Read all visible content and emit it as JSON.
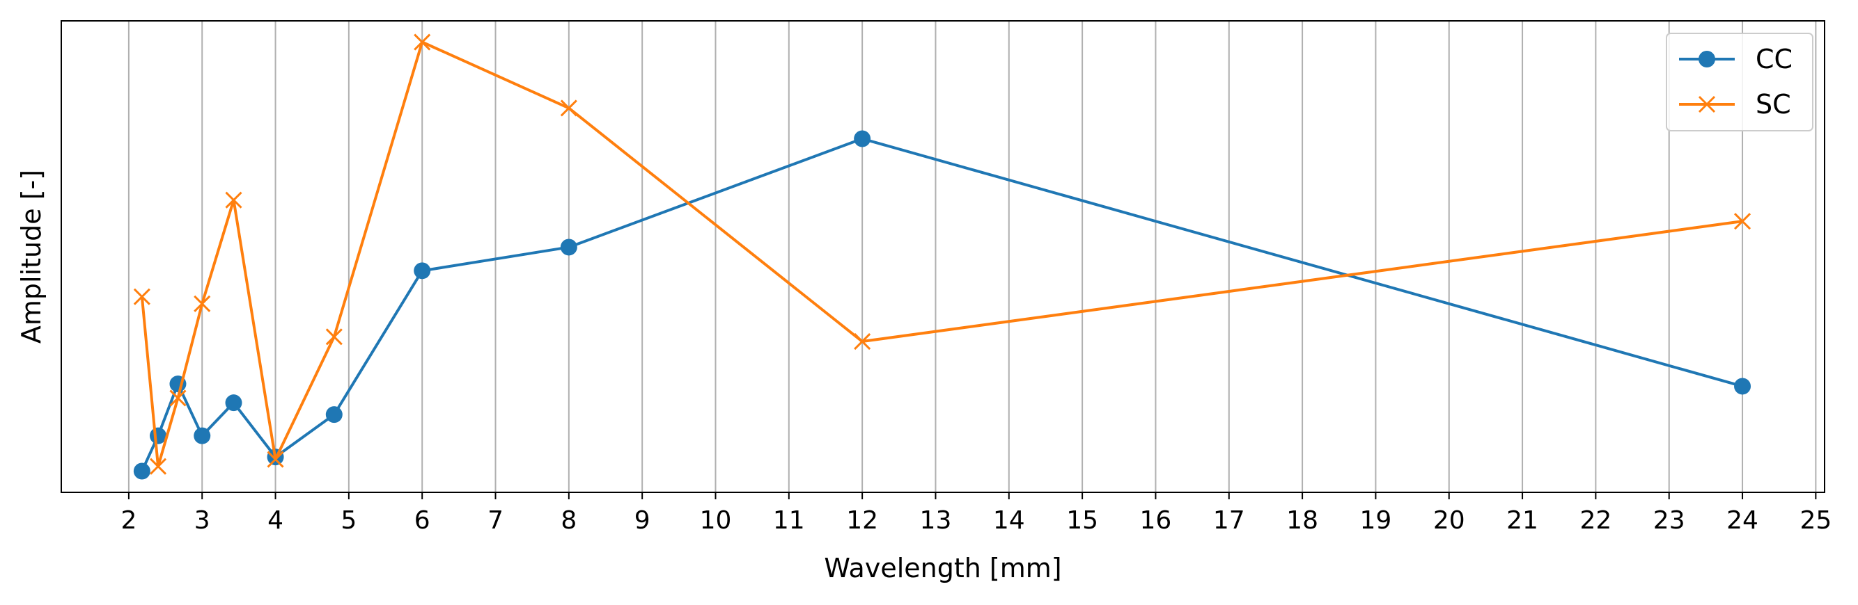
{
  "chart_data": {
    "type": "line",
    "title": "",
    "xlabel": "Wavelength [mm]",
    "ylabel": "Amplitude [-]",
    "xlim": [
      1.08,
      25.12
    ],
    "ylim": [
      0.0,
      1.0
    ],
    "y_ticks_shown": false,
    "x_ticks": [
      2,
      3,
      4,
      5,
      6,
      7,
      8,
      9,
      10,
      11,
      12,
      13,
      14,
      15,
      16,
      17,
      18,
      19,
      20,
      21,
      22,
      23,
      24,
      25
    ],
    "grid": "vertical",
    "legend_position": "top-right",
    "series": [
      {
        "name": "CC",
        "color": "#1f77b4",
        "marker": "circle",
        "x": [
          2.18,
          2.4,
          2.67,
          3.0,
          3.43,
          4.0,
          4.8,
          6.0,
          8.0,
          12.0,
          24.0
        ],
        "y": [
          0.045,
          0.12,
          0.23,
          0.12,
          0.19,
          0.075,
          0.165,
          0.47,
          0.52,
          0.75,
          0.225
        ]
      },
      {
        "name": "SC",
        "color": "#ff7f0e",
        "marker": "x",
        "x": [
          2.18,
          2.4,
          2.67,
          3.0,
          3.43,
          4.0,
          4.8,
          6.0,
          8.0,
          12.0,
          24.0
        ],
        "y": [
          0.415,
          0.055,
          0.2,
          0.4,
          0.62,
          0.07,
          0.33,
          0.955,
          0.815,
          0.32,
          0.575
        ]
      }
    ]
  }
}
